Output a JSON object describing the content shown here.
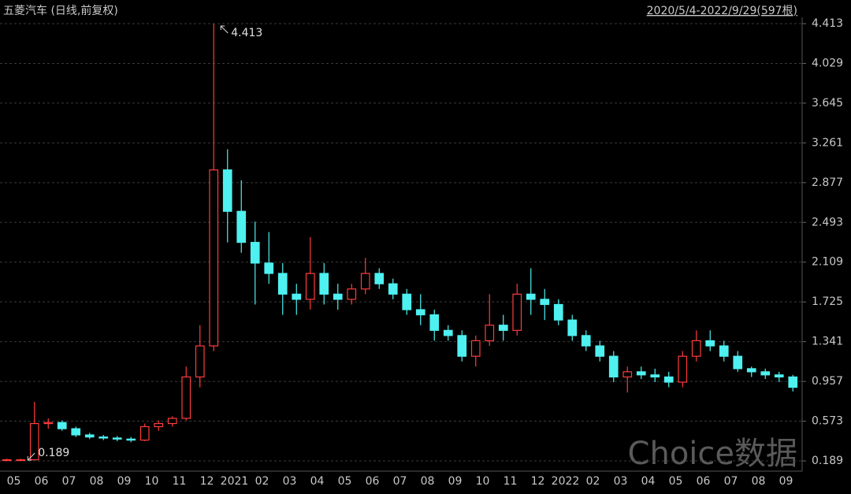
{
  "chart_data": {
    "type": "candlestick",
    "title": "五菱汽车 (日线,前复权)",
    "subtitle": "2020/5/4-2022/9/29(597根)",
    "watermark": "Choice数据",
    "categories": [
      "05",
      null,
      "06",
      null,
      "07",
      null,
      "08",
      null,
      "09",
      null,
      "10",
      null,
      "11",
      null,
      "12",
      null,
      "2021",
      null,
      "02",
      null,
      "03",
      null,
      "04",
      null,
      "05",
      null,
      "06",
      null,
      "07",
      null,
      "08",
      null,
      "09",
      null,
      "10",
      null,
      "11",
      null,
      "12",
      null,
      "2022",
      null,
      "02",
      null,
      "03",
      null,
      "04",
      null,
      "05",
      null,
      "06",
      null,
      "07",
      null,
      "08",
      null,
      "09",
      null
    ],
    "open": [
      0.2,
      0.2,
      0.2,
      0.55,
      0.56,
      0.5,
      0.44,
      0.42,
      0.41,
      0.4,
      0.39,
      0.52,
      0.55,
      0.6,
      1.0,
      1.3,
      3.0,
      2.6,
      2.3,
      2.1,
      2.0,
      1.8,
      1.75,
      2.0,
      1.8,
      1.75,
      1.85,
      2.0,
      1.9,
      1.8,
      1.65,
      1.6,
      1.45,
      1.4,
      1.2,
      1.35,
      1.5,
      1.45,
      1.8,
      1.75,
      1.7,
      1.55,
      1.4,
      1.3,
      1.2,
      1.0,
      1.05,
      1.02,
      1.0,
      0.95,
      1.2,
      1.35,
      1.3,
      1.2,
      1.08,
      1.05,
      1.02,
      1.0
    ],
    "high": [
      0.21,
      0.21,
      0.76,
      0.6,
      0.58,
      0.52,
      0.46,
      0.44,
      0.43,
      0.42,
      0.55,
      0.58,
      0.62,
      1.1,
      1.5,
      4.413,
      3.2,
      2.9,
      2.5,
      2.4,
      2.1,
      1.9,
      2.35,
      2.1,
      1.9,
      1.9,
      2.15,
      2.05,
      1.95,
      1.85,
      1.8,
      1.65,
      1.5,
      1.45,
      1.4,
      1.8,
      1.6,
      1.9,
      2.05,
      1.85,
      1.75,
      1.6,
      1.45,
      1.35,
      1.25,
      1.1,
      1.1,
      1.08,
      1.05,
      1.25,
      1.45,
      1.45,
      1.35,
      1.25,
      1.1,
      1.08,
      1.05,
      1.02
    ],
    "low": [
      0.19,
      0.189,
      0.2,
      0.5,
      0.48,
      0.42,
      0.4,
      0.39,
      0.38,
      0.37,
      0.38,
      0.48,
      0.52,
      0.58,
      0.9,
      1.25,
      2.3,
      2.2,
      1.7,
      1.9,
      1.6,
      1.6,
      1.65,
      1.7,
      1.65,
      1.7,
      1.8,
      1.85,
      1.75,
      1.6,
      1.5,
      1.35,
      1.35,
      1.15,
      1.1,
      1.3,
      1.35,
      1.4,
      1.6,
      1.55,
      1.5,
      1.35,
      1.25,
      1.15,
      0.95,
      0.85,
      0.98,
      0.95,
      0.9,
      0.9,
      1.15,
      1.25,
      1.15,
      1.05,
      1.0,
      0.98,
      0.95,
      0.86
    ],
    "close": [
      0.2,
      0.2,
      0.55,
      0.56,
      0.5,
      0.44,
      0.42,
      0.41,
      0.4,
      0.39,
      0.52,
      0.55,
      0.6,
      1.0,
      1.3,
      3.0,
      2.6,
      2.3,
      2.1,
      2.0,
      1.8,
      1.75,
      2.0,
      1.8,
      1.75,
      1.85,
      2.0,
      1.9,
      1.8,
      1.65,
      1.6,
      1.45,
      1.4,
      1.2,
      1.35,
      1.5,
      1.45,
      1.8,
      1.75,
      1.7,
      1.55,
      1.4,
      1.3,
      1.2,
      1.0,
      1.05,
      1.02,
      1.0,
      0.95,
      1.2,
      1.35,
      1.3,
      1.2,
      1.08,
      1.05,
      1.02,
      1.0,
      0.9
    ],
    "up_color": "#ff3c3c",
    "down_color": "#4ef0f0",
    "ylim": [
      0.189,
      4.413
    ],
    "yticks": [
      0.189,
      0.573,
      0.957,
      1.341,
      1.725,
      2.109,
      2.493,
      2.877,
      3.261,
      3.645,
      4.029,
      4.413
    ],
    "grid": true,
    "max_index": 15,
    "min_index": 1
  }
}
